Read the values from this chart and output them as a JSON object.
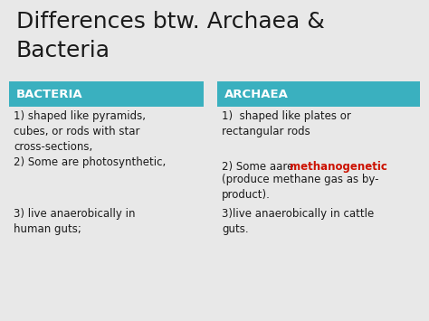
{
  "title_line1": "Differences btw. Archaea &",
  "title_line2": "Bacteria",
  "title_fontsize": 18,
  "title_color": "#1a1a1a",
  "background_color": "#e8e8e8",
  "header_color": "#3ab0bf",
  "header_text_color": "#ffffff",
  "col1_header": "BACTERIA",
  "col2_header": "ARCHAEA",
  "col1_item1": "1) shaped like pyramids,\ncubes, or rods with star\ncross-sections,\n2) Some are photosynthetic,",
  "col1_item2": "3) live anaerobically in\nhuman guts;",
  "col2_item1": "1)  shaped like plates or\nrectangular rods",
  "col2_item2_pre": "2) Some aare ",
  "col2_item2_red": "methanogenetic",
  "col2_item2_post": "\n(produce methane gas as by-\nproduct).",
  "col2_item3": "3)live anaerobically in cattle\nguts.",
  "body_fontsize": 8.5,
  "header_fontsize": 9.5,
  "red_color": "#cc1100",
  "text_color": "#1a1a1a"
}
